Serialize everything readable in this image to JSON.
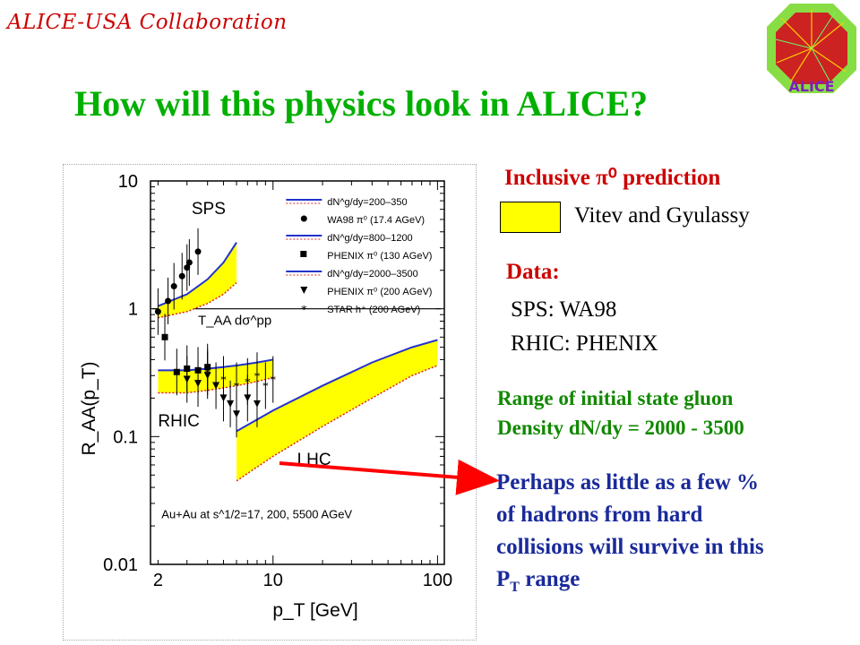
{
  "header": {
    "collaboration": "ALICE-USA Collaboration",
    "title": "How will this physics look in ALICE?",
    "logo_text": "ALICE"
  },
  "legend_panel": {
    "prediction_title": "Inclusive π⁰ prediction",
    "prediction_source": "Vitev and Gyulassy",
    "data_title": "Data:",
    "data_sps": "SPS: WA98",
    "data_rhic": "RHIC: PHENIX",
    "density_line1": "Range of initial state gluon",
    "density_line2": "Density dN/dy = 2000 - 3500",
    "survive_line1": "Perhaps as little as a few %",
    "survive_line2": "of hadrons from hard",
    "survive_line3": "collisions will survive in this",
    "survive_line4_prefix": "P",
    "survive_line4_sub": "T",
    "survive_line4_suffix": " range"
  },
  "colors": {
    "title_green": "#00b000",
    "collab_red": "#cc0000",
    "band_fill": "#ffff00",
    "band_edge_upper": "#2233cc",
    "band_edge_lower": "#dd2222",
    "arrow": "#ff0000"
  },
  "chart_data": {
    "type": "area",
    "xlabel": "p_T [GeV]",
    "ylabel": "R_AA(p_T)",
    "xscale": "log",
    "yscale": "log",
    "xlim": [
      1.8,
      110
    ],
    "ylim": [
      0.01,
      10
    ],
    "x_ticks": [
      "2",
      "10",
      "100"
    ],
    "y_ticks": [
      "0.01",
      "0.1",
      "1",
      "10"
    ],
    "annotations": [
      "SPS",
      "RHIC",
      "LHC",
      "Au+Au at s^1/2=17, 200, 5500 AGeV",
      "T_AA dσ^pp"
    ],
    "legend": [
      {
        "label": "dN^g/dy=200–350",
        "marker": "band"
      },
      {
        "label": "WA98 π⁰ (17.4 AGeV)",
        "marker": "circle"
      },
      {
        "label": "dN^g/dy=800–1200",
        "marker": "band"
      },
      {
        "label": "PHENIX π⁰ (130 AGeV)",
        "marker": "square"
      },
      {
        "label": "dN^g/dy=2000–3500",
        "marker": "band"
      },
      {
        "label": "PHENIX π⁰ (200 AGeV)",
        "marker": "triangle"
      },
      {
        "label": "STAR h⁺ (200 AGeV)",
        "marker": "star"
      }
    ],
    "bands": [
      {
        "name": "SPS",
        "x": [
          2,
          3,
          4,
          5,
          6
        ],
        "upper": [
          1.05,
          1.3,
          1.7,
          2.3,
          3.3
        ],
        "lower": [
          0.85,
          0.95,
          1.1,
          1.3,
          1.6
        ]
      },
      {
        "name": "RHIC",
        "x": [
          2,
          3,
          4,
          5,
          6,
          7,
          8,
          9,
          10
        ],
        "upper": [
          0.33,
          0.33,
          0.34,
          0.35,
          0.36,
          0.37,
          0.38,
          0.39,
          0.4
        ],
        "lower": [
          0.22,
          0.22,
          0.23,
          0.24,
          0.25,
          0.26,
          0.27,
          0.28,
          0.29
        ]
      },
      {
        "name": "LHC",
        "x": [
          6,
          10,
          20,
          40,
          70,
          100
        ],
        "upper": [
          0.11,
          0.16,
          0.25,
          0.38,
          0.5,
          0.57
        ],
        "lower": [
          0.045,
          0.07,
          0.12,
          0.2,
          0.3,
          0.36
        ]
      }
    ],
    "series": [
      {
        "name": "WA98 π⁰ (17.4 AGeV)",
        "marker": "circle",
        "points": [
          [
            2.0,
            0.95
          ],
          [
            2.3,
            1.15
          ],
          [
            2.5,
            1.5
          ],
          [
            2.8,
            1.8
          ],
          [
            3.0,
            2.1
          ],
          [
            3.1,
            2.3
          ],
          [
            3.5,
            2.8
          ]
        ]
      },
      {
        "name": "PHENIX π⁰ (130 AGeV)",
        "marker": "square",
        "points": [
          [
            2.2,
            0.6
          ],
          [
            2.6,
            0.32
          ],
          [
            3.0,
            0.34
          ],
          [
            3.5,
            0.33
          ],
          [
            4.0,
            0.35
          ]
        ]
      },
      {
        "name": "PHENIX π⁰ (200 AGeV)",
        "marker": "triangle",
        "points": [
          [
            3.0,
            0.28
          ],
          [
            3.5,
            0.26
          ],
          [
            4.0,
            0.3
          ],
          [
            4.5,
            0.25
          ],
          [
            5.0,
            0.2
          ],
          [
            5.5,
            0.18
          ],
          [
            6.0,
            0.15
          ],
          [
            7.0,
            0.2
          ],
          [
            8.0,
            0.18
          ]
        ]
      },
      {
        "name": "STAR h⁺ (200 AGeV)",
        "marker": "star",
        "points": [
          [
            4.0,
            0.32
          ],
          [
            5.0,
            0.28
          ],
          [
            6.0,
            0.25
          ],
          [
            7.0,
            0.27
          ],
          [
            8.0,
            0.3
          ],
          [
            9.0,
            0.25
          ],
          [
            10.0,
            0.28
          ]
        ]
      }
    ]
  }
}
